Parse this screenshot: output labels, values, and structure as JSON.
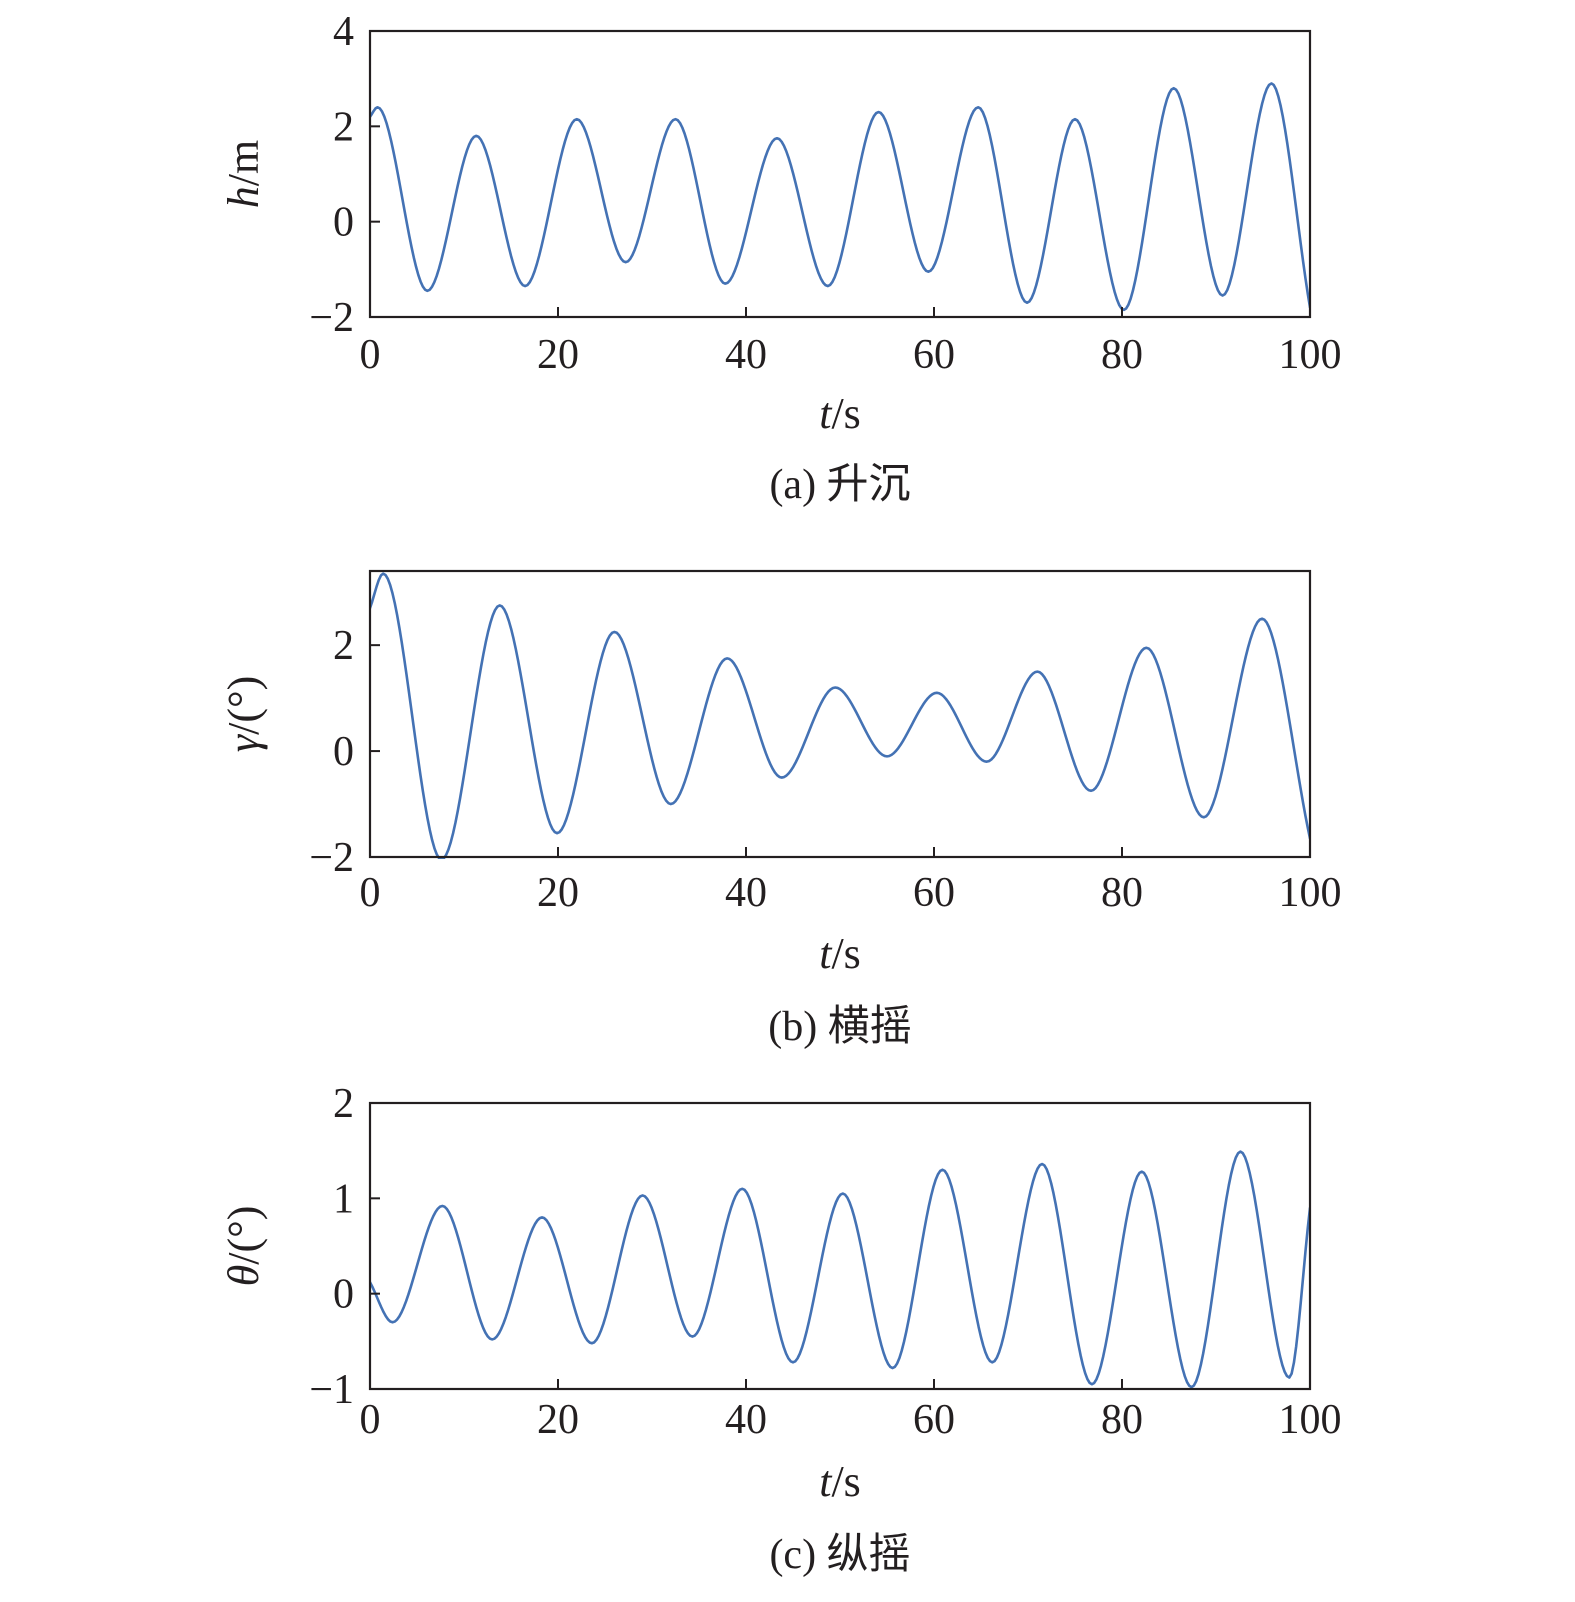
{
  "colors": {
    "line": "#4472b4",
    "axis": "#231f20"
  },
  "chart_data": [
    {
      "type": "line",
      "caption": "(a) 升沉",
      "ylabel_var": "h",
      "ylabel_unit": "/m",
      "xlabel_var": "t",
      "xlabel_unit": "/s",
      "xlim": [
        0,
        100
      ],
      "ylim": [
        -2,
        4
      ],
      "xticks": [
        0,
        20,
        40,
        60,
        80,
        100
      ],
      "yticks": [
        -2,
        0,
        2,
        4
      ],
      "ytick_labels": [
        "−2",
        "0",
        "2",
        "4"
      ],
      "grid": false,
      "series": [
        {
          "x": [
            0,
            0.8,
            6.1,
            11.3,
            16.5,
            22.0,
            27.2,
            32.5,
            37.8,
            43.3,
            48.7,
            54.1,
            59.4,
            64.7,
            69.9,
            75.0,
            80.2,
            85.5,
            90.7,
            95.9,
            100
          ],
          "y": [
            2.2,
            2.4,
            -1.45,
            1.8,
            -1.35,
            2.15,
            -0.85,
            2.15,
            -1.3,
            1.75,
            -1.35,
            2.3,
            -1.05,
            2.4,
            -1.7,
            2.15,
            -1.85,
            2.8,
            -1.55,
            2.9,
            -1.8
          ]
        }
      ]
    },
    {
      "type": "line",
      "caption": "(b) 横摇",
      "ylabel_var": "γ",
      "ylabel_unit": "/(°)",
      "xlabel_var": "t",
      "xlabel_unit": "/s",
      "xlim": [
        0,
        100
      ],
      "ylim": [
        -2,
        3.4
      ],
      "xticks": [
        0,
        20,
        40,
        60,
        80,
        100
      ],
      "yticks": [
        -2,
        0,
        2
      ],
      "ytick_labels": [
        "−2",
        "0",
        "2"
      ],
      "grid": false,
      "series": [
        {
          "x": [
            0,
            1.4,
            7.6,
            13.8,
            19.9,
            26.0,
            32.0,
            38.0,
            43.8,
            49.5,
            55.0,
            60.3,
            65.6,
            71.0,
            76.7,
            82.6,
            88.7,
            94.9,
            100
          ],
          "y": [
            2.7,
            3.35,
            -2.05,
            2.75,
            -1.55,
            2.25,
            -1.0,
            1.75,
            -0.5,
            1.2,
            -0.1,
            1.1,
            -0.2,
            1.5,
            -0.75,
            1.95,
            -1.25,
            2.5,
            -1.65
          ]
        }
      ]
    },
    {
      "type": "line",
      "caption": "(c) 纵摇",
      "ylabel_var": "θ",
      "ylabel_unit": "/(°)",
      "xlabel_var": "t",
      "xlabel_unit": "/s",
      "xlim": [
        0,
        100
      ],
      "ylim": [
        -1,
        2
      ],
      "xticks": [
        0,
        20,
        40,
        60,
        80,
        100
      ],
      "yticks": [
        -1,
        0,
        1,
        2
      ],
      "ytick_labels": [
        "−1",
        "0",
        "1",
        "2"
      ],
      "grid": false,
      "series": [
        {
          "x": [
            0,
            2.4,
            7.7,
            13.0,
            18.3,
            23.6,
            29.0,
            34.3,
            39.6,
            45.0,
            50.3,
            55.6,
            60.9,
            66.2,
            71.5,
            76.8,
            82.1,
            87.4,
            92.6,
            97.8,
            100
          ],
          "y": [
            0.12,
            -0.3,
            0.92,
            -0.48,
            0.8,
            -0.52,
            1.03,
            -0.45,
            1.1,
            -0.72,
            1.05,
            -0.78,
            1.3,
            -0.72,
            1.36,
            -0.95,
            1.28,
            -0.98,
            1.49,
            -0.88,
            0.9
          ]
        }
      ]
    }
  ]
}
